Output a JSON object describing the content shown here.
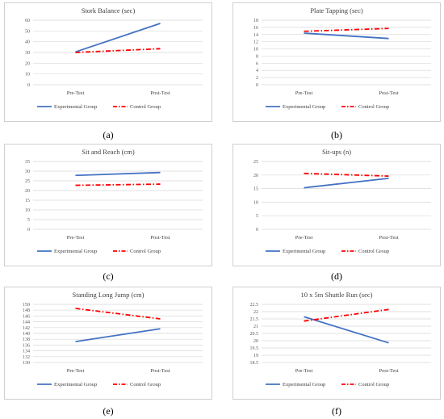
{
  "legend": {
    "experimental": "Experimental Group",
    "control": "Control Group"
  },
  "colors": {
    "experimental": "#4472C4",
    "control": "#FF0000",
    "grid": "#d9d9d9"
  },
  "chart_data": [
    {
      "type": "line",
      "caption": "(a)",
      "title": "Stork Balance (sec)",
      "categories": [
        "Pre-Test",
        "Post-Test"
      ],
      "ylim": [
        0,
        60
      ],
      "yticks": [
        0,
        10,
        20,
        30,
        40,
        50,
        60
      ],
      "series": [
        {
          "name": "Experimental Group",
          "values": [
            30.5,
            57
          ]
        },
        {
          "name": "Control Group",
          "values": [
            30.0,
            33.5
          ]
        }
      ],
      "legend_position": "bottom",
      "grid": true
    },
    {
      "type": "line",
      "caption": "(b)",
      "title": "Plate Tapping (sec)",
      "categories": [
        "Pre-Test",
        "Post-Test"
      ],
      "ylim": [
        0,
        18
      ],
      "yticks": [
        0,
        2,
        4,
        6,
        8,
        10,
        12,
        14,
        16,
        18
      ],
      "series": [
        {
          "name": "Experimental Group",
          "values": [
            14.4,
            12.9
          ]
        },
        {
          "name": "Control Group",
          "values": [
            14.9,
            15.7
          ]
        }
      ],
      "legend_position": "bottom",
      "grid": true
    },
    {
      "type": "line",
      "caption": "(c)",
      "title": "Sit and Reach (cm)",
      "categories": [
        "Pre-Test",
        "Post-Test"
      ],
      "ylim": [
        0,
        35
      ],
      "yticks": [
        0,
        5,
        10,
        15,
        20,
        25,
        30,
        35
      ],
      "series": [
        {
          "name": "Experimental Group",
          "values": [
            27.8,
            29.3
          ]
        },
        {
          "name": "Control Group",
          "values": [
            22.7,
            23.3
          ]
        }
      ],
      "legend_position": "bottom",
      "grid": true
    },
    {
      "type": "line",
      "caption": "(d)",
      "title": "Sit-ups (n)",
      "categories": [
        "Pre-Test",
        "Post-Test"
      ],
      "ylim": [
        0,
        25
      ],
      "yticks": [
        0,
        5,
        10,
        15,
        20,
        25
      ],
      "series": [
        {
          "name": "Experimental Group",
          "values": [
            15.3,
            18.8
          ]
        },
        {
          "name": "Control Group",
          "values": [
            20.6,
            19.6
          ]
        }
      ],
      "legend_position": "bottom",
      "grid": true
    },
    {
      "type": "line",
      "caption": "(e)",
      "title": "Standing Long Jump (cm)",
      "categories": [
        "Pre-Test",
        "Post-Test"
      ],
      "ylim": [
        130,
        150
      ],
      "yticks": [
        130,
        132,
        134,
        136,
        138,
        140,
        142,
        144,
        146,
        148,
        150
      ],
      "series": [
        {
          "name": "Experimental Group",
          "values": [
            137.2,
            141.6
          ]
        },
        {
          "name": "Control Group",
          "values": [
            148.6,
            145.0
          ]
        }
      ],
      "legend_position": "bottom",
      "grid": true
    },
    {
      "type": "line",
      "caption": "(f)",
      "title": "10 x 5m Shuttle Run (sec)",
      "categories": [
        "Pre-Test",
        "Post-Test"
      ],
      "ylim": [
        18.5,
        22.5
      ],
      "yticks": [
        18.5,
        19,
        19.5,
        20,
        20.5,
        21,
        21.5,
        22,
        22.5
      ],
      "series": [
        {
          "name": "Experimental Group",
          "values": [
            21.65,
            19.85
          ]
        },
        {
          "name": "Control Group",
          "values": [
            21.35,
            22.15
          ]
        }
      ],
      "legend_position": "bottom",
      "grid": true
    }
  ]
}
